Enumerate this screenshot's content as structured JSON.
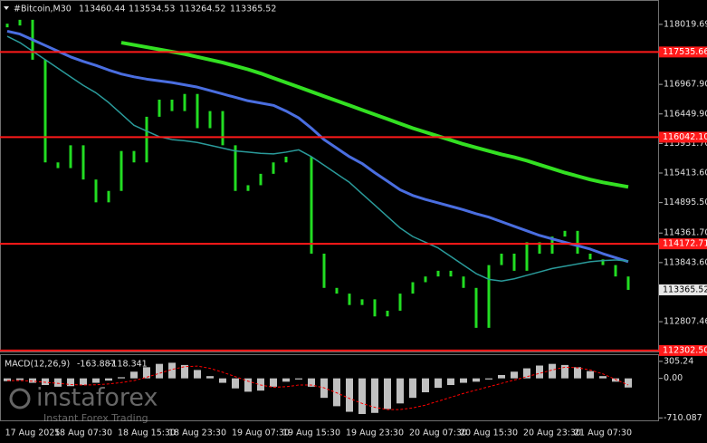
{
  "chart_data": [
    {
      "type": "candlestick",
      "title": "#Bitcoin,M30",
      "last_bar": {
        "open": 113460.44,
        "high": 113534.53,
        "low": 113264.52
      },
      "color": "#22dd22",
      "categories": [
        null,
        null,
        "17 Aug 2025",
        null,
        null,
        null,
        "18 Aug 07:30",
        null,
        null,
        null,
        null,
        "18 Aug 15:30",
        null,
        null,
        null,
        "18 Aug 23:30",
        null,
        null,
        null,
        null,
        "19 Aug 07:30",
        null,
        null,
        null,
        "19 Aug 15:30",
        null,
        null,
        null,
        null,
        "19 Aug 23:30",
        null,
        null,
        null,
        null,
        "20 Aug 07:30",
        null,
        null,
        null,
        "20 Aug 15:30",
        null,
        null,
        null,
        null,
        "20 Aug 23:30",
        null,
        null,
        null,
        "21 Aug 07:30",
        null,
        null
      ],
      "values": [
        118000,
        118100,
        117400,
        115600,
        115500,
        115900,
        115300,
        114900,
        115100,
        115800,
        115600,
        116400,
        116700,
        116500,
        116800,
        116200,
        116500,
        115900,
        115100,
        115200,
        115400,
        115600,
        115700,
        115700,
        114000,
        113400,
        113300,
        113100,
        113200,
        112900,
        113000,
        113300,
        113500,
        113600,
        113700,
        113600,
        113400,
        112700,
        113800,
        114000,
        113700,
        114200,
        114000,
        114300,
        114400,
        114000,
        113900,
        113800,
        113600,
        113365.52
      ],
      "series": [
        {
          "color": "#33e022",
          "width": 4,
          "values": [
            null,
            null,
            null,
            null,
            null,
            null,
            null,
            null,
            null,
            117700,
            117660,
            117620,
            117580,
            117540,
            117500,
            117450,
            117400,
            117350,
            117290,
            117230,
            117160,
            117080,
            117000,
            116920,
            116840,
            116760,
            116680,
            116600,
            116520,
            116440,
            116360,
            116280,
            116200,
            116130,
            116060,
            115990,
            115920,
            115860,
            115800,
            115740,
            115690,
            115630,
            115560,
            115490,
            115420,
            115360,
            115300,
            115250,
            115210,
            115170
          ]
        },
        {
          "color": "#4a6ee0",
          "width": 3,
          "values": [
            117900,
            117850,
            117750,
            117650,
            117550,
            117450,
            117370,
            117300,
            117220,
            117150,
            117100,
            117060,
            117030,
            117000,
            116960,
            116920,
            116860,
            116800,
            116740,
            116680,
            116640,
            116600,
            116500,
            116380,
            116200,
            116000,
            115850,
            115700,
            115580,
            115420,
            115270,
            115120,
            115020,
            114950,
            114890,
            114830,
            114770,
            114700,
            114640,
            114560,
            114480,
            114400,
            114320,
            114260,
            114200,
            114140,
            114080,
            114000,
            113930,
            113860
          ]
        },
        {
          "color": "#2a9a9a",
          "width": 1.5,
          "values": [
            117810,
            117700,
            117550,
            117400,
            117250,
            117100,
            116950,
            116820,
            116650,
            116450,
            116250,
            116150,
            116050,
            116000,
            115980,
            115950,
            115900,
            115850,
            115800,
            115780,
            115760,
            115750,
            115780,
            115820,
            115700,
            115550,
            115400,
            115250,
            115050,
            114850,
            114650,
            114450,
            114300,
            114200,
            114100,
            113950,
            113800,
            113650,
            113550,
            113520,
            113560,
            113620,
            113680,
            113740,
            113780,
            113820,
            113860,
            113880,
            113890,
            113870
          ]
        }
      ],
      "levels": [
        {
          "value": 117535.66,
          "color": "#ff1a1a"
        },
        {
          "value": 116042.1,
          "label": "116042.10",
          "color": "#ff1a1a"
        },
        {
          "value": 114172.71,
          "color": "#ff1a1a"
        },
        {
          "value": 112302.5,
          "label": "112302.50",
          "color": "#ff1a1a"
        }
      ],
      "ylim": [
        112285,
        118447
      ],
      "yticks": [
        118019.69,
        {
          "value": 116967.9,
          "label": "116967.90"
        },
        {
          "value": 116449.9,
          "label": "116449.90"
        },
        {
          "value": 115931.7,
          "label": "115931.70"
        },
        {
          "value": 115413.6,
          "label": "115413.60"
        },
        {
          "value": 114895.5,
          "label": "114895.50"
        },
        {
          "value": 114361.7,
          "label": "114361.70"
        },
        {
          "value": 113843.6,
          "label": "113843.60"
        },
        112807.46
      ]
    },
    {
      "type": "macd",
      "title": "MACD(12,26,9)",
      "color": "#c0c0c0",
      "signal_color": "#ff0000",
      "values": [
        -50,
        -30,
        -80,
        -120,
        -150,
        -140,
        -120,
        -80,
        -40,
        20,
        120,
        200,
        260,
        280,
        240,
        150,
        40,
        -80,
        -180,
        -240,
        -220,
        -150,
        -60,
        -20,
        -150,
        -350,
        -500,
        -600,
        -640,
        -620,
        -550,
        -450,
        -350,
        -250,
        -170,
        -120,
        -80,
        -60,
        -20,
        60,
        120,
        180,
        230,
        260,
        240,
        200,
        130,
        40,
        -60,
        -163.887
      ],
      "signal": [
        -40,
        -40,
        -50,
        -70,
        -90,
        -110,
        -120,
        -115,
        -100,
        -75,
        -40,
        20,
        90,
        160,
        210,
        220,
        180,
        110,
        30,
        -50,
        -120,
        -160,
        -150,
        -120,
        -120,
        -170,
        -260,
        -360,
        -450,
        -520,
        -560,
        -560,
        -530,
        -480,
        -410,
        -340,
        -270,
        -210,
        -150,
        -90,
        -30,
        30,
        90,
        150,
        200,
        190,
        150,
        80,
        -20,
        -118.341
      ],
      "ylim": [
        -770,
        417
      ],
      "yticks": [
        305.24,
        {
          "value": 0,
          "label": "0.00"
        },
        -710.087
      ]
    }
  ],
  "watermark": {
    "brand": "instaforex",
    "tagline": "Instant Forex Trading"
  }
}
